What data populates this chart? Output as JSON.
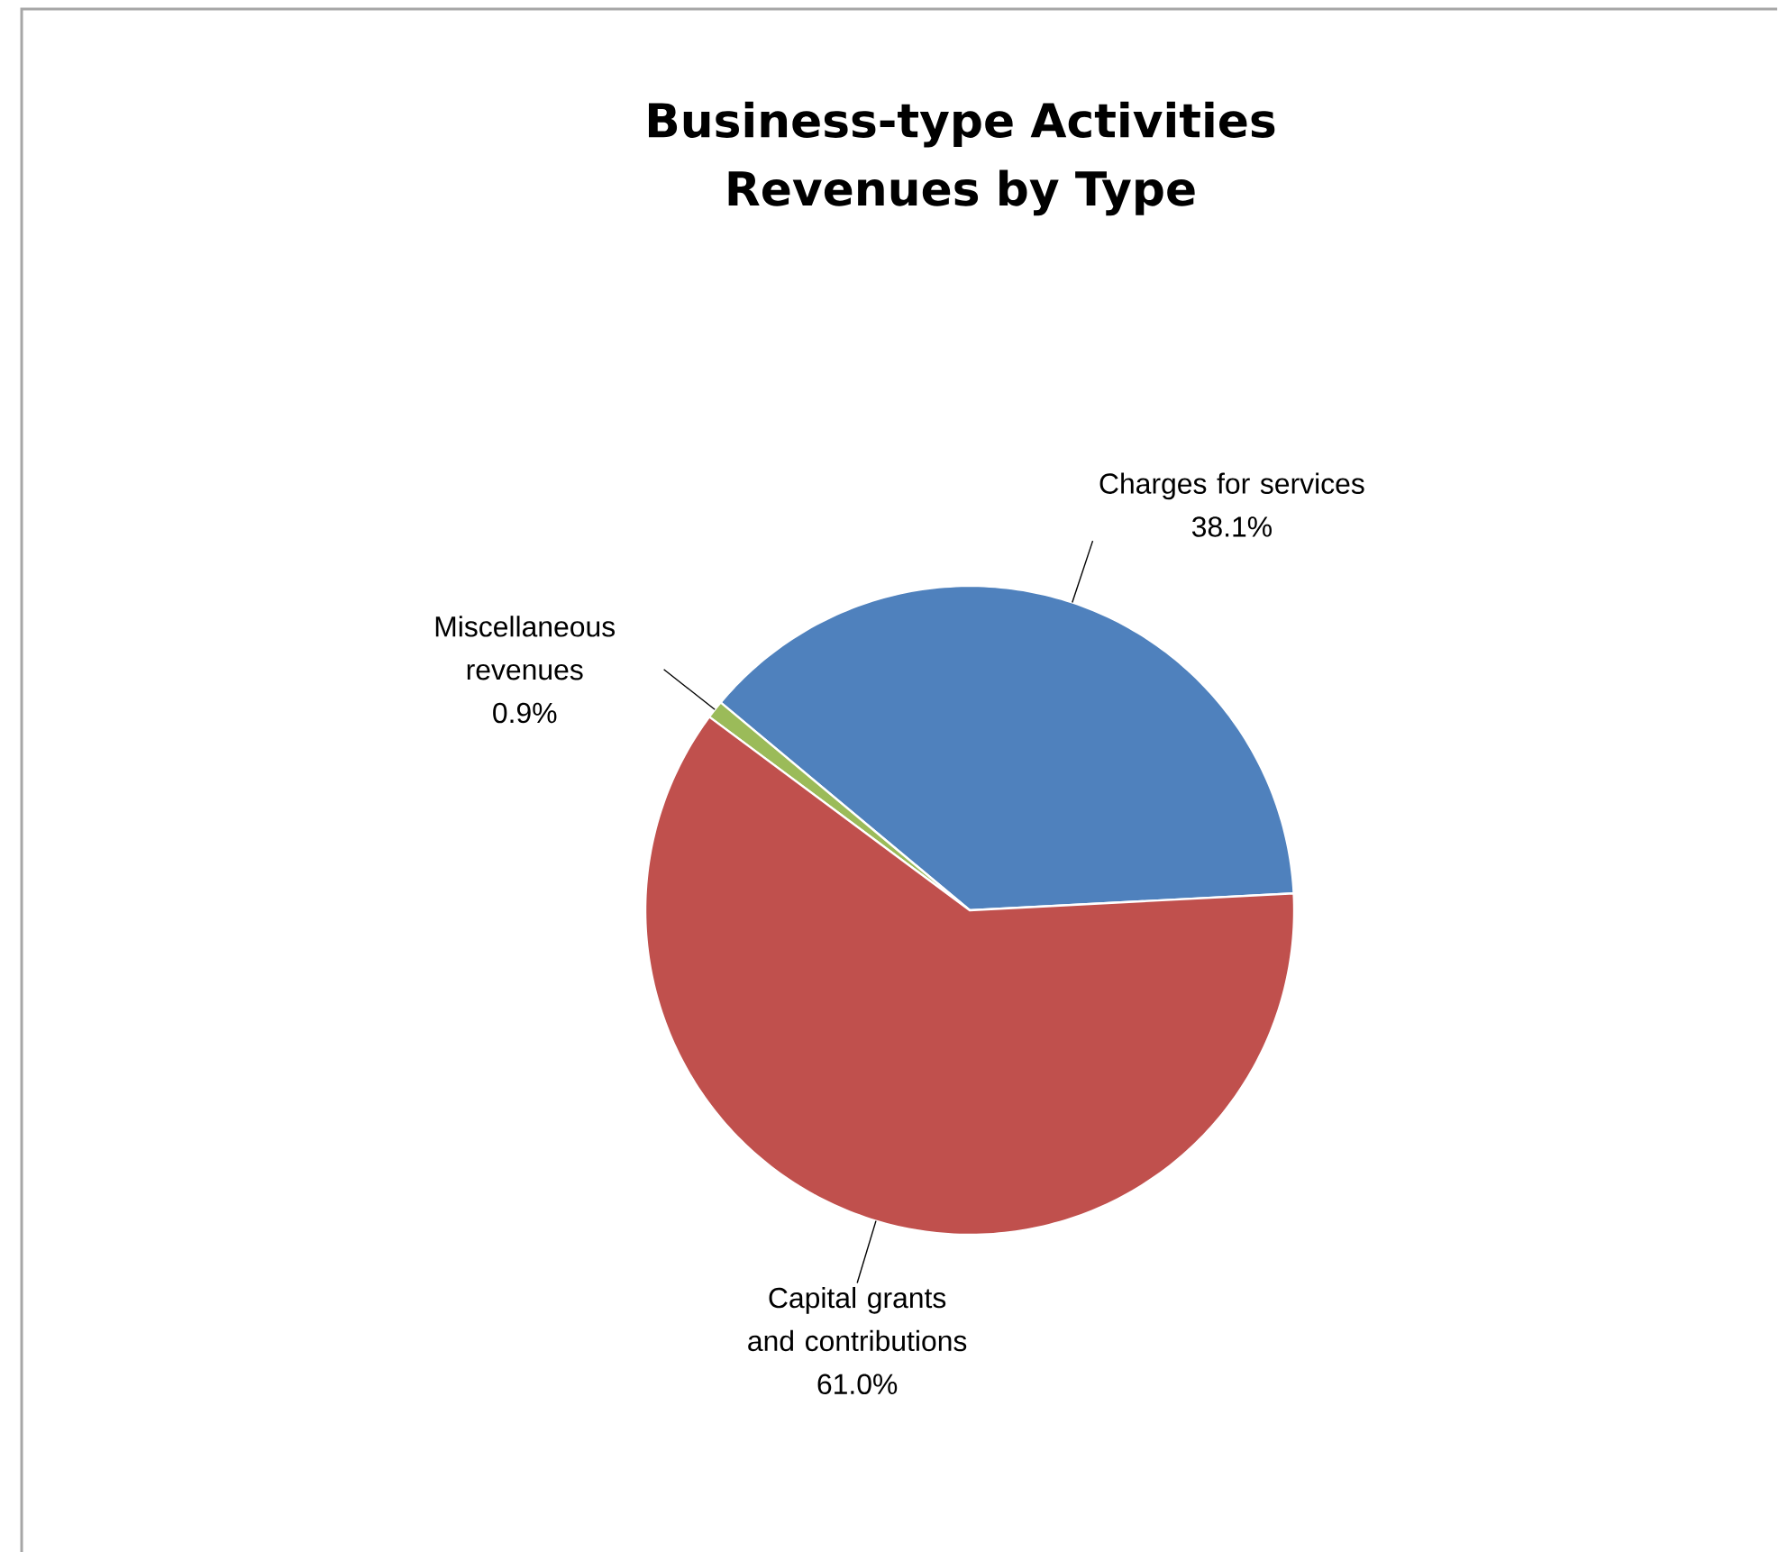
{
  "chart_data": {
    "type": "pie",
    "title": "Business-type Activities Revenues by Type",
    "categories": [
      "Charges for services",
      "Miscellaneous revenues",
      "Capital grants and contributions"
    ],
    "values": [
      38.1,
      0.9,
      61.0
    ],
    "value_labels": [
      "38.1%",
      "0.9%",
      "61.0%"
    ],
    "colors": [
      "#4f81bd",
      "#9bbb59",
      "#c0504d"
    ]
  }
}
